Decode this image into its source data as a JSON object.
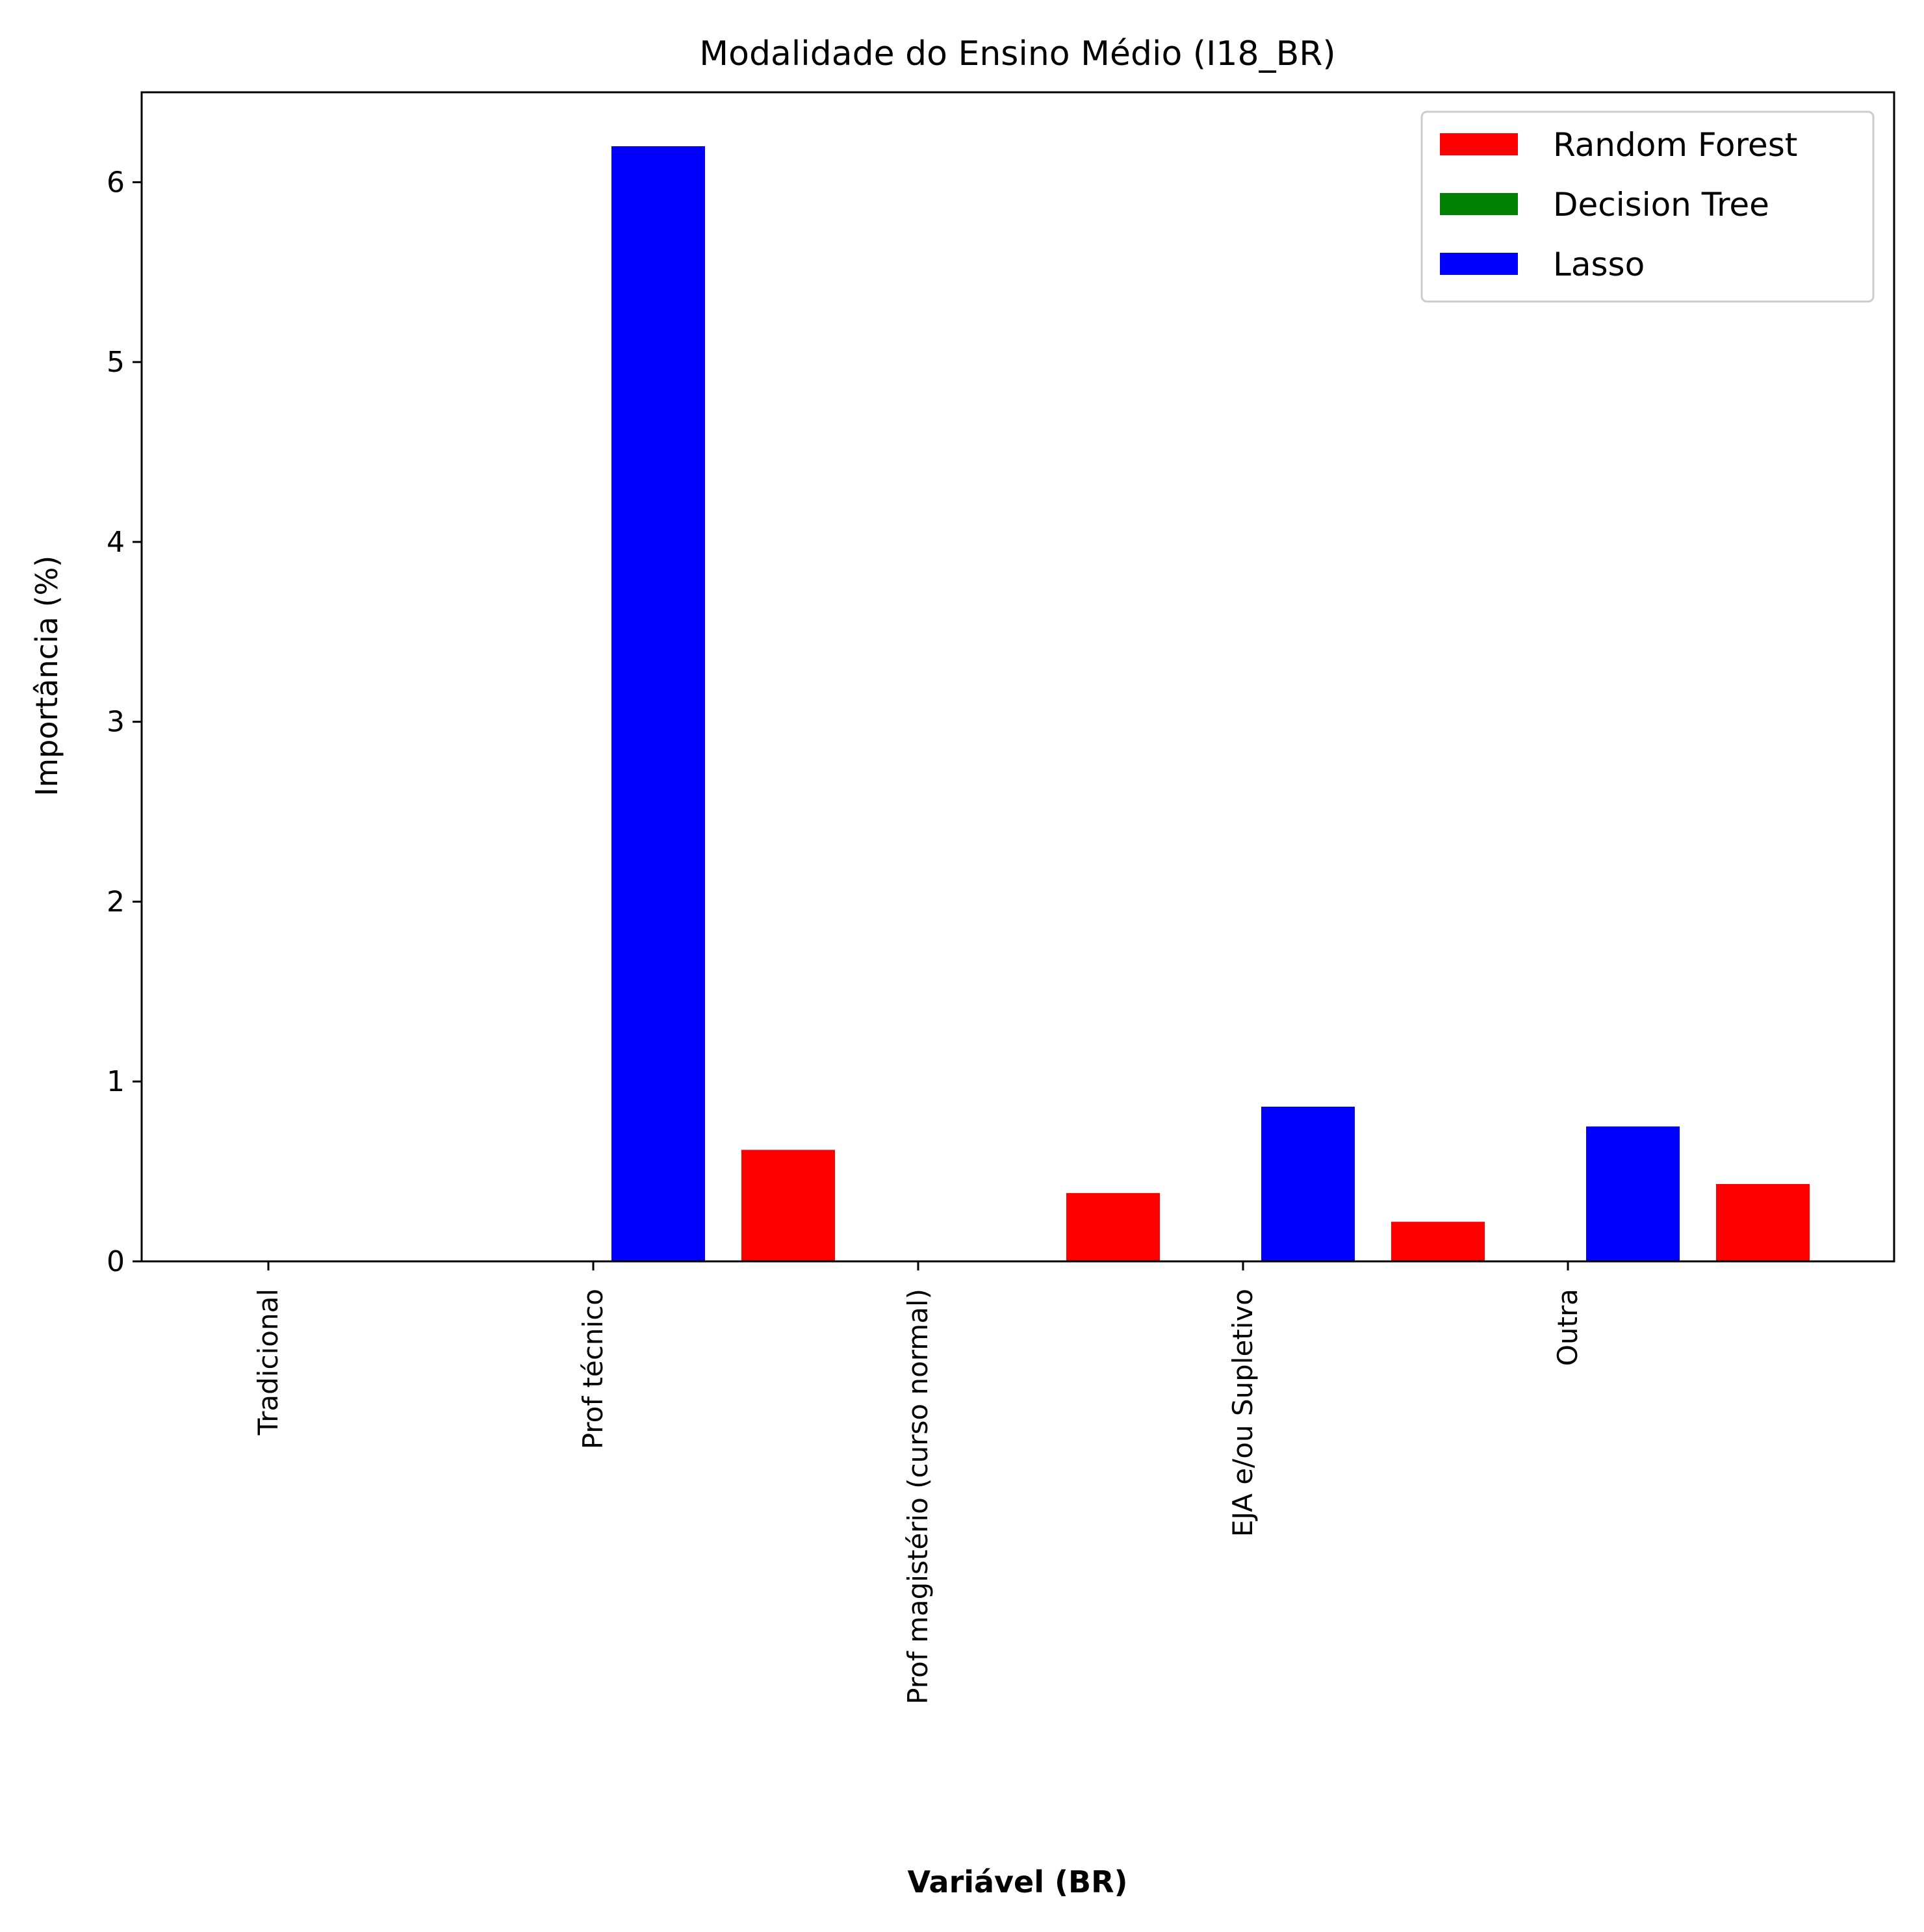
{
  "chart_data": {
    "type": "bar",
    "title": "Modalidade do Ensino Médio (I18_BR)",
    "xlabel": "Variável (BR)",
    "ylabel": "Importância (%)",
    "ylim": [
      0,
      6.5
    ],
    "yticks": [
      "0",
      "1",
      "2",
      "3",
      "4",
      "5",
      "6"
    ],
    "categories": [
      "Tradicional",
      "Prof técnico",
      "Prof magistério (curso normal)",
      "EJA e/ou Supletivo",
      "Outra"
    ],
    "series": [
      {
        "name": "Random Forest",
        "color": "#ff0000",
        "values": [
          0,
          0.62,
          0.38,
          0.22,
          0.43
        ]
      },
      {
        "name": "Decision Tree",
        "color": "#008000",
        "values": [
          0,
          0,
          0,
          0,
          0
        ]
      },
      {
        "name": "Lasso",
        "color": "#0000ff",
        "values": [
          0,
          6.2,
          0,
          0.86,
          0.75
        ]
      }
    ],
    "grid": false,
    "legend_position": "top-right"
  }
}
